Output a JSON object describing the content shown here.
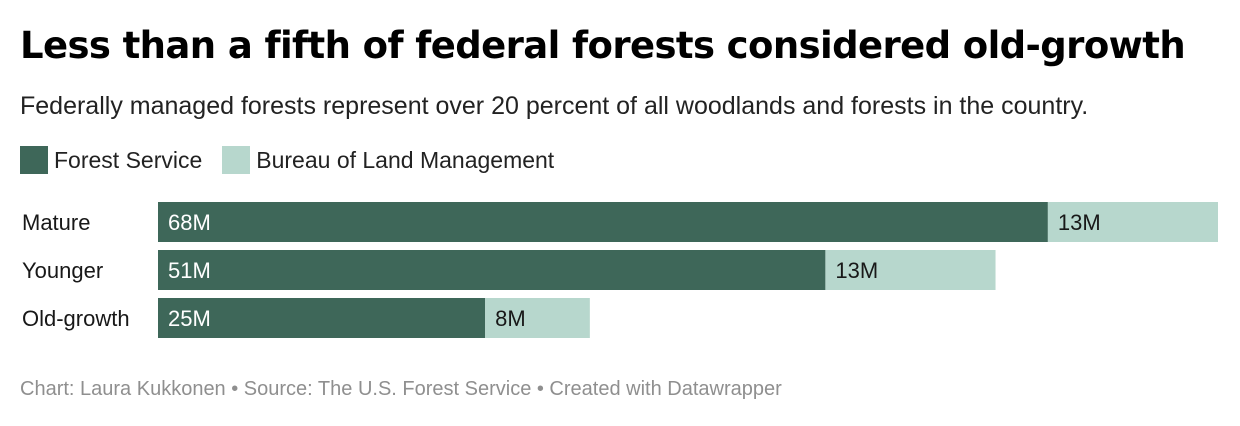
{
  "title": "Less than a fifth of federal forests considered old-growth",
  "subtitle": "Federally managed forests represent over 20 percent of all woodlands and forests in the country.",
  "legend": [
    {
      "label": "Forest Service",
      "color": "#3e6759"
    },
    {
      "label": "Bureau of Land Management",
      "color": "#b7d7cd"
    }
  ],
  "chart_data": {
    "type": "bar",
    "orientation": "horizontal",
    "stacked": true,
    "categories": [
      "Mature",
      "Younger",
      "Old-growth"
    ],
    "series": [
      {
        "name": "Forest Service",
        "values": [
          68,
          51,
          25
        ],
        "labels": [
          "68M",
          "51M",
          "25M"
        ],
        "color": "#3e6759"
      },
      {
        "name": "Bureau of Land Management",
        "values": [
          13,
          13,
          8
        ],
        "labels": [
          "13M",
          "13M",
          "8M"
        ],
        "color": "#b7d7cd"
      }
    ],
    "xlim": [
      0,
      81
    ],
    "grid": false,
    "legend_position": "top-left"
  },
  "footer": "Chart: Laura Kukkonen • Source: The U.S. Forest Service • Created with Datawrapper"
}
